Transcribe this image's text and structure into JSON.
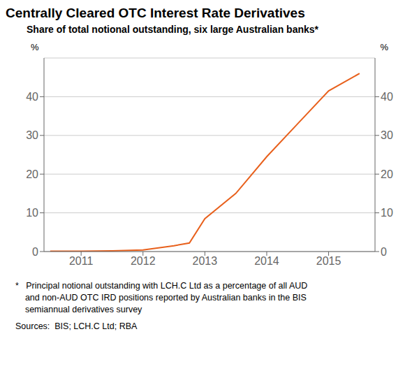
{
  "chart_data": {
    "type": "line",
    "title": "Centrally Cleared OTC Interest Rate Derivatives",
    "subtitle": "Share of total notional outstanding, six large Australian banks*",
    "notes": [
      "*   Principal notional outstanding with LCH.C Ltd as a percentage of all AUD",
      "    and non-AUD OTC IRD positions reported by Australian banks in the BIS",
      "    semiannual derivatives survey"
    ],
    "source": "Sources:  BIS; LCH.C Ltd; RBA",
    "ylabel": "%",
    "y2label": "%",
    "x": [
      2010.5,
      2011.0,
      2011.5,
      2012.0,
      2012.5,
      2012.75,
      2013.0,
      2013.5,
      2014.0,
      2014.5,
      2015.0,
      2015.5
    ],
    "values": [
      0.1,
      0.1,
      0.2,
      0.4,
      1.5,
      2.2,
      8.5,
      15.0,
      24.5,
      33.0,
      41.5,
      46.0
    ],
    "color": "#E8601C",
    "xlim": [
      2010.4,
      2015.75
    ],
    "xticks": [
      2011,
      2012,
      2013,
      2014,
      2015
    ],
    "ylim": [
      0,
      50
    ],
    "yticks": [
      0,
      10,
      20,
      30,
      40
    ],
    "y2lim": [
      0,
      50
    ],
    "y2ticks": [
      0,
      10,
      20,
      30,
      40
    ],
    "grid": true
  }
}
